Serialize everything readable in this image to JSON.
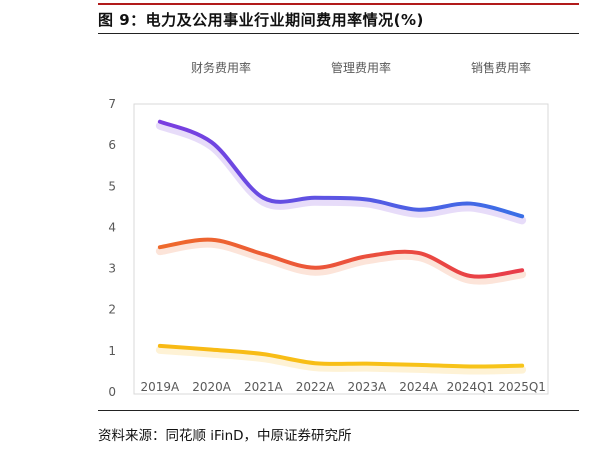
{
  "figure": {
    "title": "图 9：电力及公用事业行业期间费用率情况(%)",
    "source": "资料来源：同花顺 iFinD，中原证券研究所"
  },
  "chart_data": {
    "type": "line",
    "title": "图 9：电力及公用事业行业期间费用率情况(%)",
    "xlabel": "",
    "ylabel": "",
    "categories": [
      "2019A",
      "2020A",
      "2021A",
      "2022A",
      "2023A",
      "2024A",
      "2024Q1",
      "2025Q1"
    ],
    "ylim": [
      0,
      7
    ],
    "yticks": [
      0,
      1,
      2,
      3,
      4,
      5,
      6,
      7
    ],
    "grid": false,
    "legend_position": "top",
    "series": [
      {
        "name": "财务费用率",
        "values": [
          6.57,
          6.07,
          4.72,
          4.72,
          4.68,
          4.43,
          4.58,
          4.27
        ],
        "color": "#7a3de0",
        "color_end": "#3a6fe6"
      },
      {
        "name": "管理费用率",
        "values": [
          3.52,
          3.7,
          3.35,
          3.02,
          3.3,
          3.38,
          2.82,
          2.96
        ],
        "color": "#ee6a2c",
        "color_end": "#e83c4a"
      },
      {
        "name": "销售费用率",
        "values": [
          1.12,
          1.03,
          0.92,
          0.7,
          0.69,
          0.66,
          0.62,
          0.64
        ],
        "color": "#f8b914",
        "color_end": "#f7c51a"
      }
    ]
  }
}
